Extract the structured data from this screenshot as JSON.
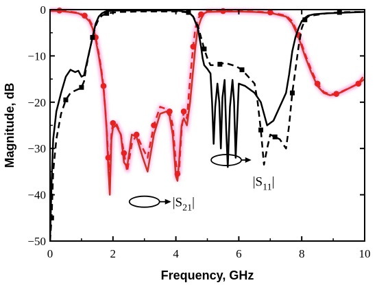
{
  "chart_data": {
    "type": "line",
    "xlabel": "Frequency, GHz",
    "ylabel": "Magnitude, dB",
    "xlim": [
      0,
      10
    ],
    "ylim": [
      -50,
      0
    ],
    "xticks": [
      0,
      2,
      4,
      6,
      8,
      10
    ],
    "yticks": [
      0,
      -10,
      -20,
      -30,
      -40,
      -50
    ],
    "xtick_labels": [
      "0",
      "2",
      "4",
      "6",
      "8",
      "10"
    ],
    "ytick_labels": [
      "0",
      "−10",
      "−20",
      "−30",
      "−40",
      "−50"
    ],
    "grid": false,
    "annotations": [
      {
        "name": "S11",
        "text_main": "|S",
        "text_sub": "11",
        "text_end": "|",
        "ellipse_center": [
          5.6,
          -32.5
        ],
        "arrow_to": [
          6.4,
          -32.5
        ],
        "label_at": [
          6.4,
          -37
        ]
      },
      {
        "name": "S21",
        "text_main": "|S",
        "text_sub": "21",
        "text_end": "|",
        "ellipse_center": [
          3.0,
          -41.5
        ],
        "arrow_to": [
          3.85,
          -41.5
        ],
        "label_at": [
          3.85,
          -41.5
        ]
      }
    ],
    "series": [
      {
        "color": "#000000",
        "width": 2.5,
        "dash": "",
        "marker": "none",
        "x": [
          0.0,
          0.05,
          0.1,
          0.2,
          0.35,
          0.5,
          0.65,
          0.8,
          0.9,
          1.0,
          1.08,
          1.15,
          1.25,
          1.35,
          1.45,
          1.55,
          1.65,
          1.8,
          2.2,
          3.0,
          4.0,
          4.4,
          4.55,
          4.7,
          4.8,
          4.85,
          4.9,
          5.0,
          5.1,
          5.15,
          5.2,
          5.25,
          5.32,
          5.38,
          5.43,
          5.48,
          5.55,
          5.6,
          5.65,
          5.72,
          5.8,
          5.85,
          5.9,
          6.0,
          6.2,
          6.5,
          6.7,
          6.9,
          7.1,
          7.3,
          7.5,
          7.6,
          7.7,
          7.8,
          7.9,
          8.0,
          8.1,
          8.2,
          8.4,
          8.8,
          9.2,
          9.6,
          10.0
        ],
        "y": [
          -50,
          -37,
          -28,
          -22,
          -18,
          -14.5,
          -13,
          -13.5,
          -13.2,
          -14.5,
          -14.2,
          -12,
          -9,
          -6,
          -3,
          -1.5,
          -0.8,
          -0.3,
          -0.2,
          -0.2,
          -0.2,
          -0.5,
          -1.5,
          -4,
          -8,
          -10.5,
          -12,
          -12.8,
          -13.8,
          -20,
          -29,
          -21,
          -16,
          -20,
          -30,
          -19,
          -15.2,
          -26,
          -34,
          -21,
          -15.2,
          -20,
          -32,
          -16,
          -16.5,
          -18,
          -20,
          -25,
          -24,
          -21,
          -18,
          -14,
          -9,
          -6,
          -4,
          -2.5,
          -1.8,
          -1.3,
          -1,
          -0.8,
          -0.7,
          -0.6,
          -0.5
        ]
      },
      {
        "color": "#000000",
        "width": 2.5,
        "dash": "9,6",
        "marker": "square",
        "marker_every": 4,
        "x": [
          0.0,
          0.05,
          0.1,
          0.2,
          0.35,
          0.5,
          0.65,
          0.8,
          0.9,
          1.0,
          1.08,
          1.15,
          1.25,
          1.35,
          1.45,
          1.55,
          1.65,
          1.8,
          2.2,
          3.0,
          4.0,
          4.4,
          4.55,
          4.7,
          4.8,
          4.9,
          5.0,
          5.1,
          5.2,
          5.4,
          5.55,
          5.7,
          5.9,
          6.1,
          6.3,
          6.5,
          6.6,
          6.7,
          6.8,
          6.9,
          7.0,
          7.15,
          7.3,
          7.5,
          7.6,
          7.7,
          7.8,
          7.9,
          8.0,
          8.1,
          8.2,
          8.4,
          8.8,
          9.2,
          9.6,
          10.0
        ],
        "y": [
          -50,
          -45,
          -35,
          -28,
          -22.5,
          -19.5,
          -18,
          -17.5,
          -17.2,
          -16.8,
          -15.5,
          -12.5,
          -9,
          -6,
          -3.5,
          -2,
          -1.3,
          -0.8,
          -0.5,
          -0.4,
          -0.4,
          -0.6,
          -1.5,
          -3.5,
          -6,
          -8.5,
          -10.5,
          -12,
          -12,
          -11.8,
          -11.5,
          -11.8,
          -12.2,
          -13,
          -14.5,
          -16,
          -20,
          -26,
          -33.5,
          -30,
          -27,
          -27.5,
          -28,
          -30,
          -25,
          -18,
          -13,
          -8,
          -4,
          -2.2,
          -1.5,
          -1.2,
          -0.8,
          -0.6,
          -0.5,
          -0.5
        ]
      },
      {
        "color": "#cc3322",
        "width": 2.5,
        "dash": "",
        "marker": "none",
        "x": [
          0.0,
          0.3,
          0.6,
          0.9,
          1.1,
          1.25,
          1.35,
          1.45,
          1.55,
          1.62,
          1.7,
          1.75,
          1.8,
          1.85,
          1.9,
          1.95,
          2.0,
          2.1,
          2.25,
          2.35,
          2.45,
          2.6,
          2.75,
          2.95,
          3.1,
          3.3,
          3.5,
          3.7,
          3.8,
          3.9,
          4.0,
          4.05,
          4.1,
          4.18,
          4.25,
          4.35,
          4.45,
          4.55,
          4.62,
          4.7,
          4.8,
          4.9,
          5.0,
          5.5,
          6.0,
          6.5,
          7.0,
          7.5,
          7.7,
          7.9,
          8.1,
          8.3,
          8.5,
          8.7,
          8.9,
          9.1,
          9.3,
          9.5,
          9.8,
          10.0
        ],
        "y": [
          -0.3,
          -0.3,
          -0.5,
          -0.8,
          -1.5,
          -2.5,
          -4,
          -6.5,
          -10,
          -13,
          -17,
          -21,
          -26,
          -34,
          -40,
          -28,
          -25.5,
          -25,
          -27,
          -33,
          -34,
          -27,
          -27.5,
          -32,
          -35,
          -27,
          -22.5,
          -22,
          -23,
          -27,
          -36,
          -37,
          -33,
          -25,
          -23.5,
          -25,
          -20,
          -13,
          -8,
          -4,
          -2,
          -0.8,
          -0.5,
          -0.4,
          -0.4,
          -0.5,
          -0.7,
          -1.5,
          -3,
          -6,
          -10,
          -13.5,
          -16.5,
          -18,
          -18.5,
          -18.3,
          -17.7,
          -17,
          -16,
          -15
        ]
      },
      {
        "color": "#e82020",
        "width": 2.5,
        "dash": "9,6",
        "marker": "circle",
        "marker_every": 3,
        "x": [
          0.0,
          0.3,
          0.6,
          0.9,
          1.1,
          1.25,
          1.35,
          1.45,
          1.55,
          1.62,
          1.7,
          1.75,
          1.8,
          1.85,
          1.9,
          1.95,
          2.0,
          2.1,
          2.25,
          2.35,
          2.45,
          2.6,
          2.75,
          2.95,
          3.1,
          3.3,
          3.5,
          3.7,
          3.8,
          3.9,
          4.0,
          4.05,
          4.1,
          4.18,
          4.25,
          4.35,
          4.45,
          4.55,
          4.62,
          4.7,
          4.8,
          4.9,
          5.0,
          5.5,
          6.0,
          6.5,
          7.0,
          7.5,
          7.7,
          7.9,
          8.1,
          8.3,
          8.5,
          8.7,
          8.9,
          9.1,
          9.3,
          9.5,
          9.8,
          10.0
        ],
        "y": [
          -0.2,
          -0.2,
          -0.4,
          -0.7,
          -1.3,
          -2.2,
          -3.5,
          -6,
          -9.5,
          -12.5,
          -16.5,
          -21,
          -25.5,
          -32,
          -36,
          -27,
          -24.5,
          -24.5,
          -27,
          -31,
          -35,
          -29,
          -27,
          -30,
          -32,
          -25,
          -21,
          -21.5,
          -22,
          -25,
          -33,
          -35.5,
          -35,
          -26,
          -22,
          -23.5,
          -15,
          -8,
          -4,
          -2,
          -1,
          -0.5,
          -0.3,
          -0.3,
          -0.3,
          -0.4,
          -0.6,
          -1.3,
          -2.5,
          -5.5,
          -9.5,
          -13,
          -16,
          -17.8,
          -18.3,
          -18.2,
          -17.6,
          -17,
          -16,
          -14
        ]
      }
    ]
  }
}
